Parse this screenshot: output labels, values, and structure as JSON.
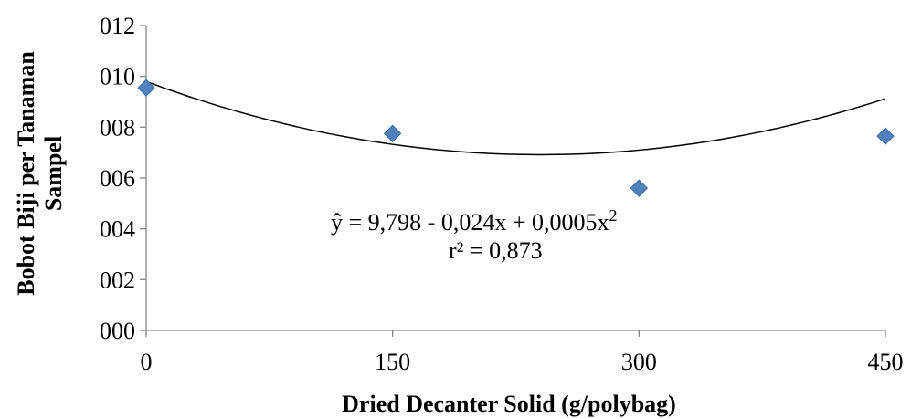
{
  "chart_data": {
    "type": "scatter",
    "xlabel": "Dried Decanter Solid (g/polybag)",
    "ylabel": [
      "Bobot Biji per Tanaman",
      "Sampel"
    ],
    "xlim": [
      0,
      450
    ],
    "ylim": [
      0,
      12
    ],
    "x_ticks": [
      0,
      150,
      300,
      450
    ],
    "x_tick_labels": [
      "0",
      "150",
      "300",
      "450"
    ],
    "y_ticks": [
      0,
      2,
      4,
      6,
      8,
      10,
      12
    ],
    "y_tick_labels": [
      "000",
      "002",
      "004",
      "006",
      "008",
      "010",
      "012"
    ],
    "grid": false,
    "legend": "none",
    "series": [
      {
        "color": "#4f81bd",
        "marker": "diamond",
        "points": [
          {
            "x": 0,
            "y": 9.55
          },
          {
            "x": 150,
            "y": 7.75
          },
          {
            "x": 300,
            "y": 5.6
          },
          {
            "x": 450,
            "y": 7.65
          }
        ]
      }
    ],
    "trendline": {
      "type": "polynomial",
      "order": 2,
      "color": "#000000",
      "coefficients": {
        "a": 9.798,
        "b": -0.024,
        "c": 0.0005
      }
    },
    "annotations": {
      "equation_main": "ŷ = 9,798 - 0,024x + 0,0005x",
      "equation_sup": "2",
      "r2": "r² = 0,873"
    }
  }
}
